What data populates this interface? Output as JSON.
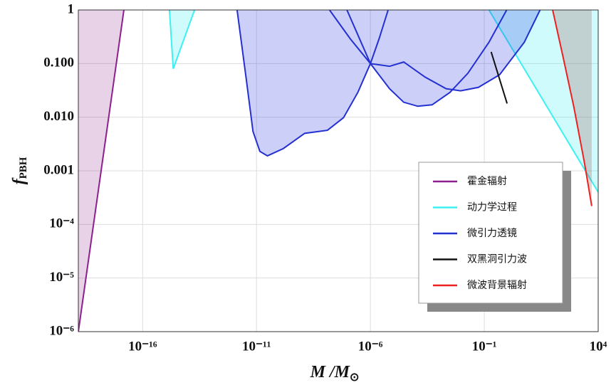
{
  "chart_data": {
    "type": "area",
    "x_label": {
      "text": "M /M",
      "sub": "⊙"
    },
    "y_label": {
      "text": "f",
      "sub": "PBH"
    },
    "xscale": "log",
    "yscale": "log",
    "grid": true,
    "xlim": [
      1.5e-19,
      10000
    ],
    "ylim": [
      1e-06,
      1
    ],
    "xticks": [
      {
        "value": 1e-16,
        "label": "10⁻¹⁶"
      },
      {
        "value": 1e-11,
        "label": "10⁻¹¹"
      },
      {
        "value": 1e-06,
        "label": "10⁻⁶"
      },
      {
        "value": 0.1,
        "label": "10⁻¹"
      },
      {
        "value": 10000,
        "label": "10⁴"
      }
    ],
    "yticks": [
      1,
      {
        "value": 0.1,
        "label": "0.100"
      },
      {
        "value": 0.01,
        "label": "0.010"
      },
      {
        "value": 0.001,
        "label": "0.001"
      },
      {
        "value": 0.0001,
        "label": "10⁻⁴"
      },
      {
        "value": 1e-05,
        "label": "10⁻⁵"
      },
      {
        "value": 1e-06,
        "label": "10⁻⁶"
      }
    ],
    "legend": "lower-right",
    "series": [
      {
        "name": "霍金辐射",
        "color": "#8e1f8e",
        "fill": "rgba(142,31,142,0.2)",
        "x": [
          1.5e-19,
          1.5e-17
        ],
        "values": [
          1e-06,
          1
        ]
      },
      {
        "name": "动力学过程",
        "color": "#3ff0f2",
        "fill": "rgba(63,240,242,0.25)",
        "x": [
          1.5e-15,
          2.2e-15,
          1.9e-14,
          null,
          0.16,
          10000
        ],
        "values": [
          1,
          0.08,
          1,
          null,
          1,
          0.0004
        ]
      },
      {
        "name": "微引力透镜",
        "color": "#2430d0",
        "fill": "rgba(40,60,230,0.24)",
        "x": [
          1.4e-12,
          3.5e-12,
          7e-12,
          1.4e-11,
          3e-11,
          1.5e-10,
          1.3e-09,
          1.3e-08,
          6.6e-08,
          2.8e-07,
          1e-06,
          2.4e-06,
          6e-06,
          null,
          1.6e-08,
          1.3e-07,
          1e-06,
          6.9e-06,
          2.9e-05,
          0.00012,
          0.00051,
          0.0031,
          0.019,
          0.16,
          0.96,
          null,
          9.3e-08,
          1e-06,
          6.9e-06,
          2.9e-05,
          0.00025,
          0.0021,
          0.0091,
          0.055,
          0.47,
          5.7,
          28
        ],
        "values": [
          1,
          0.053,
          0.0054,
          0.0023,
          0.0019,
          0.0026,
          0.005,
          0.0057,
          0.0098,
          0.029,
          0.1,
          0.29,
          1,
          null,
          1,
          0.29,
          0.1,
          0.034,
          0.019,
          0.016,
          0.017,
          0.029,
          0.066,
          0.25,
          1,
          null,
          1,
          0.1,
          0.089,
          0.107,
          0.056,
          0.034,
          0.031,
          0.036,
          0.062,
          0.25,
          1
        ]
      },
      {
        "name": "双黑洞引力波",
        "color": "#111111",
        "x": [
          0.2,
          1.0
        ],
        "values": [
          0.165,
          0.018
        ]
      },
      {
        "name": "微波背景辐射",
        "color": "#ee2020",
        "fill": "rgba(150,80,80,0.25)",
        "x": [
          100,
          290,
          850,
          2500,
          5200
        ],
        "values": [
          1,
          0.13,
          0.0156,
          0.0014,
          0.00022
        ]
      }
    ]
  }
}
